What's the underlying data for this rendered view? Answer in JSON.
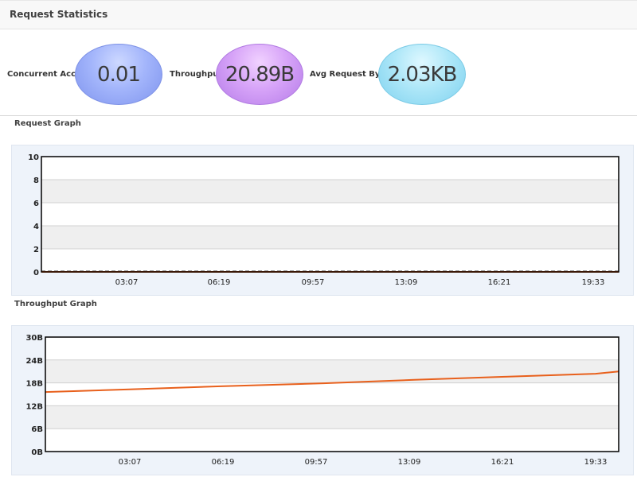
{
  "header": {
    "title": "Request Statistics"
  },
  "stats": [
    {
      "label": "Concurrent Access:",
      "value": "0.01",
      "color": "#a3b5fb"
    },
    {
      "label": "Throughput:",
      "value": "20.89B",
      "color": "#d7a4f8"
    },
    {
      "label": "Avg Request Bytes:",
      "value": "2.03KB",
      "color": "#aee7f8"
    }
  ],
  "request_graph": {
    "title": "Request Graph"
  },
  "throughput_graph": {
    "title": "Throughput Graph"
  },
  "chart_data": [
    {
      "type": "line",
      "title": "Request Graph",
      "xlabel": "",
      "ylabel": "",
      "x_ticks": [
        "03:07",
        "06:19",
        "09:57",
        "13:09",
        "16:21",
        "19:33"
      ],
      "y_ticks": [
        "0",
        "2",
        "4",
        "6",
        "8",
        "10"
      ],
      "ylim": [
        0,
        10
      ],
      "grid": "alternating horizontal bands",
      "series": [
        {
          "color": "#e8601c",
          "x": [
            "00:00",
            "19:33",
            "23:59"
          ],
          "values": [
            0,
            0,
            0
          ]
        }
      ]
    },
    {
      "type": "line",
      "title": "Throughput Graph",
      "xlabel": "",
      "ylabel": "",
      "x_ticks": [
        "03:07",
        "06:19",
        "09:57",
        "13:09",
        "16:21",
        "19:33"
      ],
      "y_ticks": [
        "0B",
        "6B",
        "12B",
        "18B",
        "24B",
        "30B"
      ],
      "ylim": [
        0,
        30
      ],
      "grid": "alternating horizontal bands",
      "series": [
        {
          "color": "#e8601c",
          "x": [
            "00:00",
            "03:07",
            "06:19",
            "09:57",
            "13:09",
            "16:21",
            "19:33",
            "23:59"
          ],
          "values": [
            15.6,
            16.3,
            17.1,
            17.9,
            18.8,
            19.6,
            20.4,
            21.0
          ]
        }
      ]
    }
  ]
}
